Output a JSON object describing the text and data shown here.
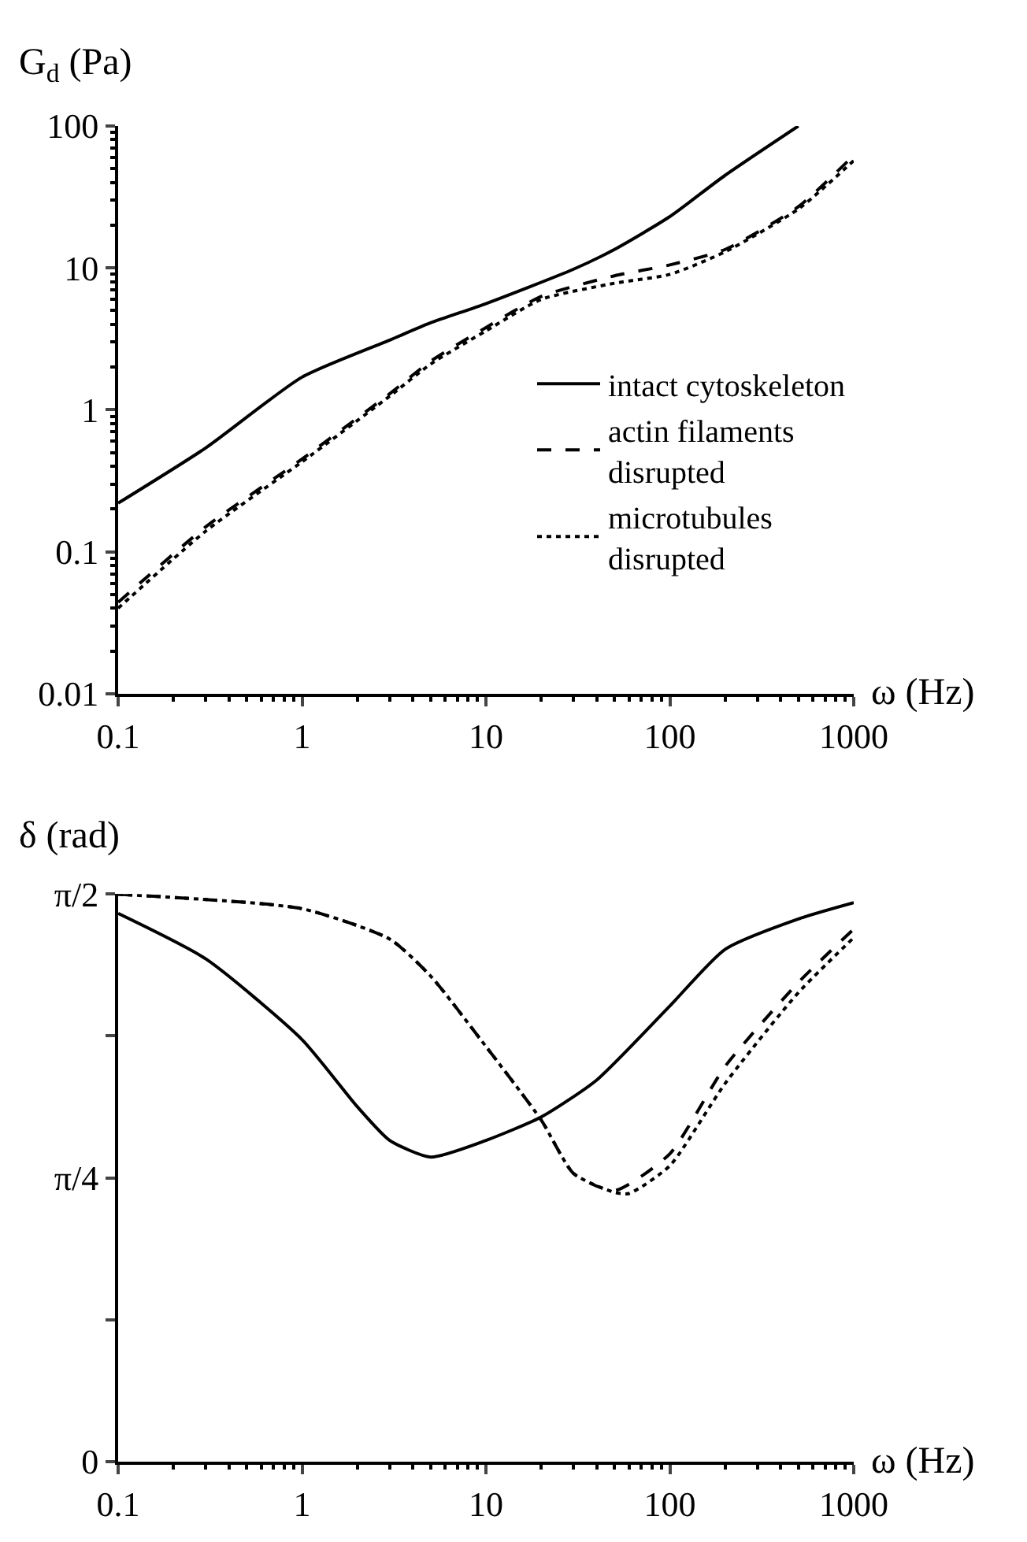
{
  "chart_data": [
    {
      "type": "line",
      "ylabel": "G$_{d}$ (Pa)",
      "xlabel": "ω (Hz)",
      "log": "xy",
      "xlim": [
        0.1,
        1000
      ],
      "xticks": [
        0.1,
        1,
        10,
        100,
        1000
      ],
      "ylim": [
        0.01,
        100
      ],
      "yticks": [
        0.01,
        0.1,
        1,
        10,
        100
      ],
      "legend": "right",
      "marker": "none",
      "series": [
        {
          "name": "intact cytoskeleton",
          "color": "#000000",
          "line_style": "solid",
          "x": [
            0.1,
            0.3,
            1,
            3,
            5,
            10,
            30,
            50,
            100,
            200,
            500
          ],
          "values": [
            0.22,
            0.54,
            1.7,
            3.1,
            4.1,
            5.6,
            9.8,
            13.5,
            23,
            45,
            100
          ]
        },
        {
          "name": "actin filaments\ndisrupted",
          "color": "#000000",
          "line_style": "dashed",
          "x": [
            0.1,
            0.3,
            1,
            3,
            5,
            10,
            20,
            50,
            100,
            200,
            500,
            1000
          ],
          "values": [
            0.044,
            0.15,
            0.45,
            1.3,
            2.2,
            3.8,
            6.3,
            8.8,
            10.5,
            13.5,
            27,
            62
          ]
        },
        {
          "name": "microtubules\ndisrupted",
          "color": "#000000",
          "line_style": "dotted",
          "x": [
            0.1,
            0.3,
            1,
            3,
            5,
            10,
            20,
            50,
            100,
            200,
            500,
            1000
          ],
          "values": [
            0.04,
            0.14,
            0.43,
            1.25,
            2.1,
            3.6,
            6.0,
            7.8,
            9.0,
            13,
            26,
            57
          ]
        }
      ]
    },
    {
      "type": "line",
      "ylabel": "δ (rad)",
      "xlabel": "ω (Hz)",
      "log": "x",
      "xlim": [
        0.1,
        1000
      ],
      "xticks": [
        0.1,
        1,
        10,
        100,
        1000
      ],
      "ylim": [
        0,
        1.5708
      ],
      "yticks": [
        {
          "value": 0,
          "label": "0"
        },
        {
          "value": 0.3927,
          "label": null
        },
        {
          "value": 0.7854,
          "label": "π/4"
        },
        {
          "value": 1.1781,
          "label": null
        },
        {
          "value": 1.5708,
          "label": "π/2"
        }
      ],
      "marker": "none",
      "series": [
        {
          "color": "#000000",
          "line_style": "solid",
          "x": [
            0.1,
            0.3,
            1,
            2,
            3,
            5,
            10,
            20,
            40,
            100,
            200,
            500,
            1000
          ],
          "values": [
            1.517,
            1.391,
            1.168,
            0.982,
            0.889,
            0.843,
            0.889,
            0.954,
            1.056,
            1.261,
            1.418,
            1.502,
            1.547
          ]
        },
        {
          "color": "#000000",
          "line_style": "dashed",
          "x": [
            0.1,
            1,
            3,
            5,
            10,
            20,
            30,
            50,
            100,
            200,
            500,
            1000
          ],
          "values": [
            1.57,
            1.53,
            1.446,
            1.344,
            1.149,
            0.945,
            0.797,
            0.75,
            0.852,
            1.094,
            1.326,
            1.474
          ]
        },
        {
          "color": "#000000",
          "line_style": "dotted",
          "x": [
            0.1,
            1,
            3,
            5,
            10,
            20,
            30,
            50,
            60,
            100,
            200,
            500,
            1000
          ],
          "values": [
            1.57,
            1.53,
            1.446,
            1.344,
            1.149,
            0.945,
            0.797,
            0.745,
            0.742,
            0.819,
            1.047,
            1.298,
            1.45
          ]
        }
      ]
    }
  ]
}
